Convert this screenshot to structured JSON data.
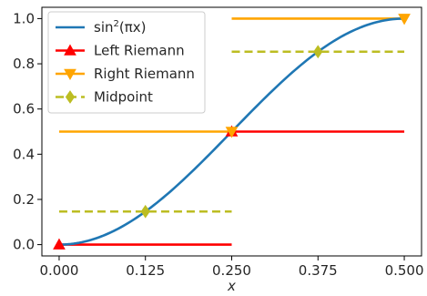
{
  "chart_data": {
    "type": "line",
    "xlabel": "x",
    "ylabel": "",
    "xlim": [
      -0.025,
      0.525
    ],
    "ylim": [
      -0.05,
      1.05
    ],
    "xticks": [
      0.0,
      0.125,
      0.25,
      0.375,
      0.5
    ],
    "xtick_labels": [
      "0.000",
      "0.125",
      "0.250",
      "0.375",
      "0.500"
    ],
    "yticks": [
      0.0,
      0.2,
      0.4,
      0.6,
      0.8,
      1.0
    ],
    "ytick_labels": [
      "0.0",
      "0.2",
      "0.4",
      "0.6",
      "0.8",
      "1.0"
    ],
    "grid": false,
    "legend_position": "upper-left",
    "series": [
      {
        "name": "sin²(πx)",
        "legend_base": "sin",
        "legend_sup": "2",
        "legend_tail": "(πx)",
        "color": "#1f77b4",
        "function": "sin^2(pi*x)",
        "domain": [
          0,
          0.5
        ]
      },
      {
        "name": "Left Riemann",
        "color": "#ff0000",
        "marker": "triangle-up",
        "segments": [
          {
            "x": [
              0.0,
              0.25
            ],
            "y": 0.0,
            "marker_x": 0.0
          },
          {
            "x": [
              0.25,
              0.5
            ],
            "y": 0.5,
            "marker_x": 0.25
          }
        ]
      },
      {
        "name": "Right Riemann",
        "color": "#ffa500",
        "marker": "triangle-down",
        "segments": [
          {
            "x": [
              0.0,
              0.25
            ],
            "y": 0.5,
            "marker_x": 0.25
          },
          {
            "x": [
              0.25,
              0.5
            ],
            "y": 1.0,
            "marker_x": 0.5
          }
        ]
      },
      {
        "name": "Midpoint",
        "color": "#bcbd22",
        "marker": "diamond",
        "dashed": true,
        "segments": [
          {
            "x": [
              0.0,
              0.25
            ],
            "y": 0.1464,
            "marker_x": 0.125
          },
          {
            "x": [
              0.25,
              0.5
            ],
            "y": 0.8536,
            "marker_x": 0.375
          }
        ]
      }
    ]
  }
}
